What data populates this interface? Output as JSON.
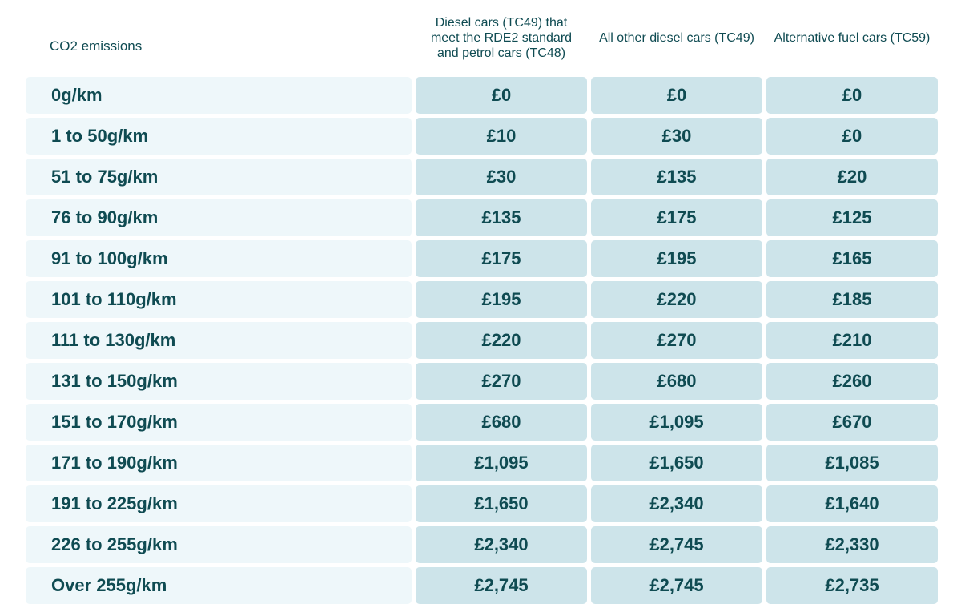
{
  "header": {
    "col0": "CO2 emissions",
    "col1": "Diesel cars (TC49) that meet the RDE2 standard and petrol cars (TC48)",
    "col2": "All other diesel cars (TC49)",
    "col3": "Alternative fuel cars (TC59)"
  },
  "rows": [
    {
      "band": "0g/km",
      "v1": "£0",
      "v2": "£0",
      "v3": "£0"
    },
    {
      "band": "1 to 50g/km",
      "v1": "£10",
      "v2": "£30",
      "v3": "£0"
    },
    {
      "band": "51 to 75g/km",
      "v1": "£30",
      "v2": "£135",
      "v3": "£20"
    },
    {
      "band": "76 to 90g/km",
      "v1": "£135",
      "v2": "£175",
      "v3": "£125"
    },
    {
      "band": "91 to 100g/km",
      "v1": "£175",
      "v2": "£195",
      "v3": "£165"
    },
    {
      "band": "101 to 110g/km",
      "v1": "£195",
      "v2": "£220",
      "v3": "£185"
    },
    {
      "band": "111 to 130g/km",
      "v1": "£220",
      "v2": "£270",
      "v3": "£210"
    },
    {
      "band": "131 to 150g/km",
      "v1": "£270",
      "v2": "£680",
      "v3": "£260"
    },
    {
      "band": "151 to 170g/km",
      "v1": "£680",
      "v2": "£1,095",
      "v3": "£670"
    },
    {
      "band": "171 to 190g/km",
      "v1": "£1,095",
      "v2": "£1,650",
      "v3": "£1,085"
    },
    {
      "band": "191 to 225g/km",
      "v1": "£1,650",
      "v2": "£2,340",
      "v3": "£1,640"
    },
    {
      "band": "226 to 255g/km",
      "v1": "£2,340",
      "v2": "£2,745",
      "v3": "£2,330"
    },
    {
      "band": "Over 255g/km",
      "v1": "£2,745",
      "v2": "£2,745",
      "v3": "£2,735"
    }
  ],
  "colors": {
    "text": "#0f4b52",
    "label_bg": "#eef7fa",
    "value_bg": "#cde4ea"
  }
}
